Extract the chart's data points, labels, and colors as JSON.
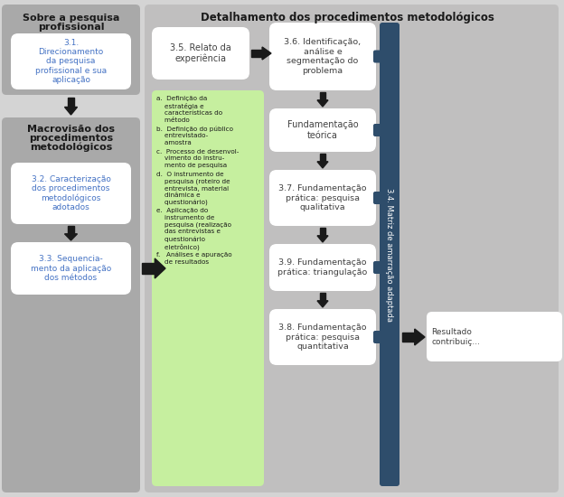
{
  "title_left1": "Sobre a pesquisa",
  "title_left2": "profissional",
  "box_31": "3.1.\nDirecionamento\nda pesquisa\nprofissional e sua\naplicação",
  "title_macro1": "Macrovisão dos",
  "title_macro2": "procedimentos",
  "title_macro3": "metodológicos",
  "box_32": "3.2. Caracterização\ndos procedimentos\nmetodológicos\nadotados",
  "box_33": "3.3. Sequencia-\nmento da aplicação\ndos métodos",
  "title_right": "Detalhamento dos procedimentos metodológicos",
  "box_35": "3.5. Relato da\nexperiência",
  "box_36": "3.6. Identificação,\nanálise e\nsegmentação do\nproblema",
  "box_fund_teo": "Fundamentação\nteórica",
  "box_37": "3.7. Fundamentação\nprática: pesquisa\nqualitativa",
  "box_39": "3.9. Fundamentação\nprática: triangulação",
  "box_38": "3.8. Fundamentação\nprática: pesquisa\nquantitativa",
  "green_item_a": "a.  Definição da\n    estratégia e\n    características do\n    método",
  "green_item_b": "b.  Definição do público\n    entrevistado-\n    amostra",
  "green_item_c": "c.  Processo de desenvol-\n    vimento do instru-\n    mento de pesquisa",
  "green_item_d": "d.  O instrumento de\n    pesquisa (roteiro de\n    entrevista, material\n    dinâmica e\n    questionário)",
  "green_item_e": "e.  Aplicação do\n    instrumento de\n    pesquisa (realização\n    das entrevistas e\n    questionário\n    eletrônico)",
  "green_item_f": "f.   Análises e apuração\n    de resultados",
  "label_34": "3.4. Matriz de amarração adaptada",
  "box_resultado": "Resultado\ncontribuiç...",
  "col_left_bg": "#a9a9a9",
  "col_right_bg": "#c0bfbf",
  "col_white": "#ffffff",
  "col_green": "#c6ef9f",
  "col_dark_blue": "#2e4d6b",
  "col_arrow": "#1a1a1a",
  "col_text_dark": "#1a1a1a",
  "col_text_blue": "#4472c4",
  "col_text_gray": "#404040",
  "fig_bg": "#d4d4d4"
}
